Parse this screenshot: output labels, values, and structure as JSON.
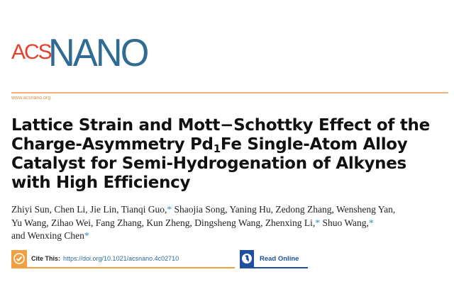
{
  "journal": {
    "logo_acs": "ACS",
    "logo_nano": "NANO",
    "url": "www.acsnano.org",
    "accent_color": "#f0a040",
    "brand_blue": "#2f6b93",
    "brand_red": "#e8402e"
  },
  "title": {
    "line1": "Lattice Strain and Mott−Schottky Effect of the",
    "line2_pre": "Charge-Asymmetry Pd",
    "line2_sub": "1",
    "line2_post": "Fe Single-Atom Alloy",
    "line3": "Catalyst for Semi-Hydrogenation of Alkynes",
    "line4": "with High Efficiency"
  },
  "authors": {
    "line1a": "Zhiyi Sun, Chen Li, Jie Lin, Tianqi Guo,",
    "line1b": " Shaojia Song, Yaning Hu, Zedong Zhang, Wensheng Yan,",
    "line2a": "Yu Wang, Zihao Wei, Fang Zhang, Kun Zheng, Dingsheng Wang, Zhenxing Li,",
    "line2b": " Shuo Wang,",
    "line3a": "and Wenxing Chen",
    "asterisk": "*"
  },
  "cite": {
    "icon": "checkmark-icon",
    "label": "Cite This:",
    "doi": "https://doi.org/10.1021/acsnano.4c02710"
  },
  "read_online": {
    "icon": "globe-icon",
    "label": "Read Online"
  }
}
